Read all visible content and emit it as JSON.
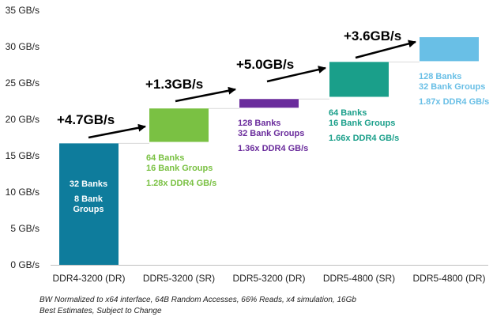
{
  "chart_data": {
    "type": "bar",
    "subtype": "waterfall",
    "title": "",
    "xlabel": "",
    "ylabel": "",
    "ylim": [
      0,
      35
    ],
    "yticks": [
      0,
      5,
      10,
      15,
      20,
      25,
      30,
      35
    ],
    "ytick_labels": [
      "0 GB/s",
      "5 GB/s",
      "10 GB/s",
      "15 GB/s",
      "20 GB/s",
      "25 GB/s",
      "30 GB/s",
      "35 GB/s"
    ],
    "grid": false,
    "categories": [
      "DDR4-3200 (DR)",
      "DDR5-3200 (SR)",
      "DDR5-3200 (DR)",
      "DDR5-4800 (SR)",
      "DDR5-4800 (DR)"
    ],
    "bars": [
      {
        "category": "DDR4-3200 (DR)",
        "bottom": 0,
        "top": 16.7,
        "color": "#0E7C9C"
      },
      {
        "category": "DDR5-3200 (SR)",
        "bottom": 16.9,
        "top": 21.5,
        "color": "#7AC143"
      },
      {
        "category": "DDR5-3200 (DR)",
        "bottom": 21.6,
        "top": 22.8,
        "color": "#6A2C9C"
      },
      {
        "category": "DDR5-4800 (SR)",
        "bottom": 23.1,
        "top": 27.9,
        "color": "#1A9F8A"
      },
      {
        "category": "DDR5-4800 (DR)",
        "bottom": 28.0,
        "top": 31.3,
        "color": "#69BFE6"
      }
    ],
    "deltas": [
      "+4.7GB/s",
      "+1.3GB/s",
      "+5.0GB/s",
      "+3.6GB/s"
    ],
    "annotations": [
      {
        "lines": [
          "32 Banks",
          "",
          "8 Bank",
          "Groups"
        ],
        "color": "#ffffff"
      },
      {
        "lines": [
          "64 Banks",
          "16 Bank Groups",
          "",
          "1.28x DDR4 GB/s"
        ],
        "color": "#7AC143"
      },
      {
        "lines": [
          "128 Banks",
          "32 Bank Groups",
          "",
          "1.36x DDR4 GB/s"
        ],
        "color": "#6A2C9C"
      },
      {
        "lines": [
          "64 Banks",
          "16 Bank Groups",
          "",
          "1.66x DDR4 GB/s"
        ],
        "color": "#1A9F8A"
      },
      {
        "lines": [
          "128 Banks",
          "32 Bank Groups",
          "",
          "1.87x DDR4 GB/s"
        ],
        "color": "#69BFE6"
      }
    ]
  },
  "footnotes": {
    "line1": "BW Normalized to x64 interface, 64B Random Accesses, 66% Reads, x4 simulation, 16Gb",
    "line2": "Best Estimates, Subject to Change"
  }
}
